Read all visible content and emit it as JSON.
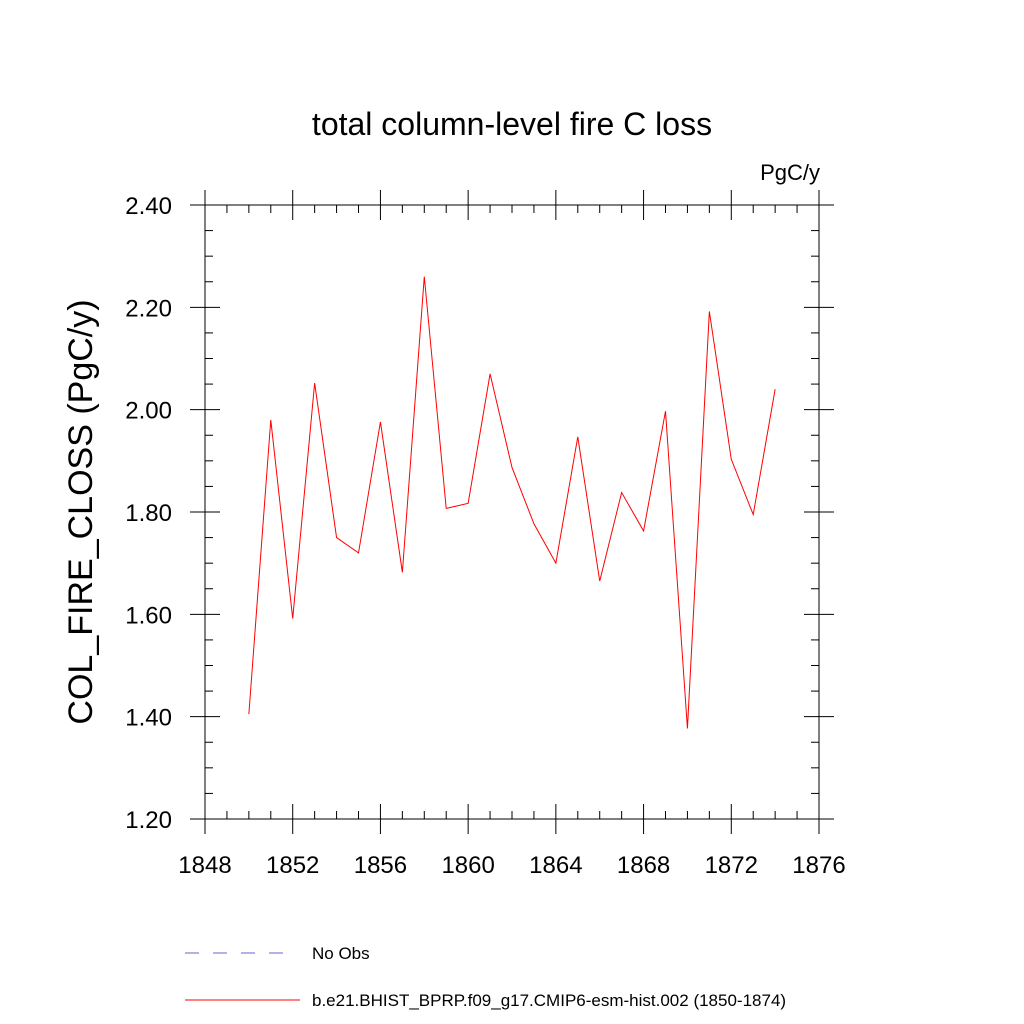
{
  "chart_data": {
    "type": "line",
    "title": "total column-level fire C loss",
    "units_label": "PgC/y",
    "ylabel": "COL_FIRE_CLOSS  (PgC/y)",
    "xlabel": "",
    "xlim": [
      1848,
      1876
    ],
    "ylim": [
      1.2,
      2.4
    ],
    "x_ticks": [
      1848,
      1852,
      1856,
      1860,
      1864,
      1868,
      1872,
      1876
    ],
    "x_tick_labels": [
      "1848",
      "1852",
      "1856",
      "1860",
      "1864",
      "1868",
      "1872",
      "1876"
    ],
    "y_ticks": [
      1.2,
      1.4,
      1.6,
      1.8,
      2.0,
      2.2,
      2.4
    ],
    "y_tick_labels": [
      "1.20",
      "1.40",
      "1.60",
      "1.80",
      "2.00",
      "2.20",
      "2.40"
    ],
    "x_minor_step": 1,
    "y_minor_step": 0.05,
    "grid": false,
    "legend_position": "bottom",
    "series": [
      {
        "name": "b.e21.BHIST_BPRP.f09_g17.CMIP6-esm-hist.002 (1850-1874)",
        "color": "#ff0000",
        "style": "solid",
        "x": [
          1850,
          1851,
          1852,
          1853,
          1854,
          1855,
          1856,
          1857,
          1858,
          1859,
          1860,
          1861,
          1862,
          1863,
          1864,
          1865,
          1866,
          1867,
          1868,
          1869,
          1870,
          1871,
          1872,
          1873,
          1874
        ],
        "values": [
          1.405,
          1.98,
          1.592,
          2.052,
          1.75,
          1.72,
          1.976,
          1.682,
          2.26,
          1.807,
          1.817,
          2.07,
          1.887,
          1.777,
          1.7,
          1.947,
          1.665,
          1.838,
          1.763,
          1.997,
          1.377,
          2.192,
          1.903,
          1.795,
          2.04
        ]
      },
      {
        "name": "No Obs",
        "color": "#6666cc",
        "style": "dashed",
        "x": [],
        "values": []
      }
    ]
  }
}
